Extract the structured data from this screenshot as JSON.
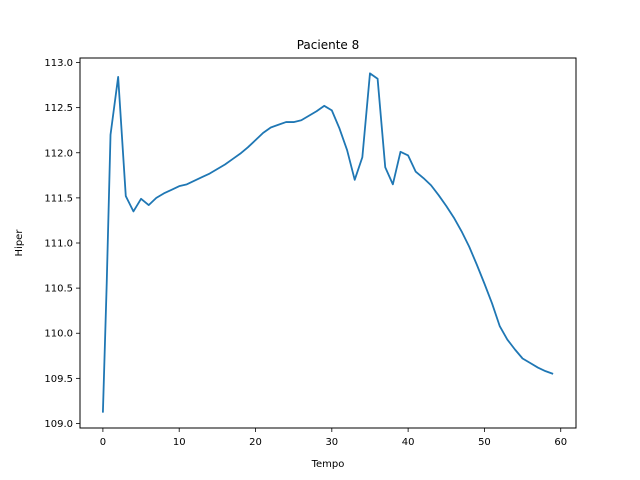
{
  "chart_data": {
    "type": "line",
    "title": "Paciente 8",
    "xlabel": "Tempo",
    "ylabel": "Hiper",
    "xlim": [
      -3,
      62
    ],
    "ylim": [
      108.95,
      113.05
    ],
    "xticks": [
      0,
      10,
      20,
      30,
      40,
      50,
      60
    ],
    "xtick_labels": [
      "0",
      "10",
      "20",
      "30",
      "40",
      "50",
      "60"
    ],
    "yticks": [
      109.0,
      109.5,
      110.0,
      110.5,
      111.0,
      111.5,
      112.0,
      112.5,
      113.0
    ],
    "ytick_labels": [
      "109.0",
      "109.5",
      "110.0",
      "110.5",
      "111.0",
      "111.5",
      "112.0",
      "112.5",
      "113.0"
    ],
    "grid": false,
    "legend": "none",
    "line_color": "#1f77b4",
    "series": [
      {
        "x": [
          0,
          0.5,
          1,
          2,
          3,
          4,
          5,
          6,
          7,
          8,
          9,
          10,
          11,
          12,
          13,
          14,
          15,
          16,
          17,
          18,
          19,
          20,
          21,
          22,
          23,
          24,
          25,
          26,
          27,
          28,
          29,
          30,
          31,
          32,
          33,
          34,
          35,
          36,
          37,
          38,
          39,
          40,
          41,
          42,
          43,
          44,
          45,
          46,
          47,
          48,
          49,
          50,
          51,
          52,
          53,
          54,
          55,
          56,
          57,
          58,
          59
        ],
        "y": [
          109.12,
          110.55,
          112.2,
          112.84,
          111.52,
          111.35,
          111.49,
          111.42,
          111.5,
          111.55,
          111.59,
          111.63,
          111.65,
          111.69,
          111.73,
          111.77,
          111.82,
          111.87,
          111.93,
          111.99,
          112.06,
          112.14,
          112.22,
          112.28,
          112.31,
          112.34,
          112.34,
          112.36,
          112.41,
          112.46,
          112.52,
          112.47,
          112.27,
          112.03,
          111.7,
          111.95,
          112.88,
          112.82,
          111.84,
          111.65,
          112.01,
          111.97,
          111.79,
          111.72,
          111.64,
          111.53,
          111.41,
          111.28,
          111.13,
          110.96,
          110.76,
          110.55,
          110.33,
          110.08,
          109.93,
          109.82,
          109.72,
          109.67,
          109.62,
          109.58,
          109.55
        ]
      }
    ]
  }
}
